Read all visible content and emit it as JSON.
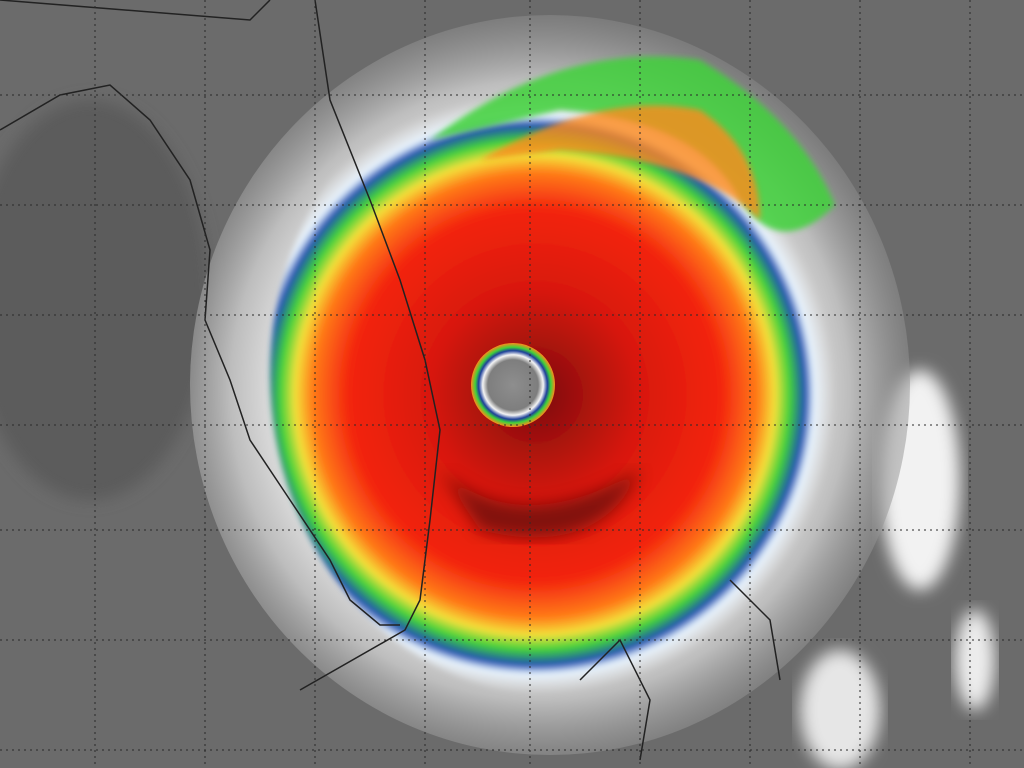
{
  "image": {
    "subject": "hurricane-infrared-satellite",
    "colors": {
      "background_cloud": "#6b6b6b",
      "outer_halo": "#e8e8e8",
      "blue_band": "#1a4fb0",
      "green_band": "#3fd23a",
      "yellow_band": "#f2e23a",
      "orange_band": "#ff8a1a",
      "red_core": "#f0200f",
      "dark_core": "#5a0a08",
      "eye": "#8a8a8a",
      "grid": "#2a2a2a",
      "coastline": "#222222"
    }
  }
}
